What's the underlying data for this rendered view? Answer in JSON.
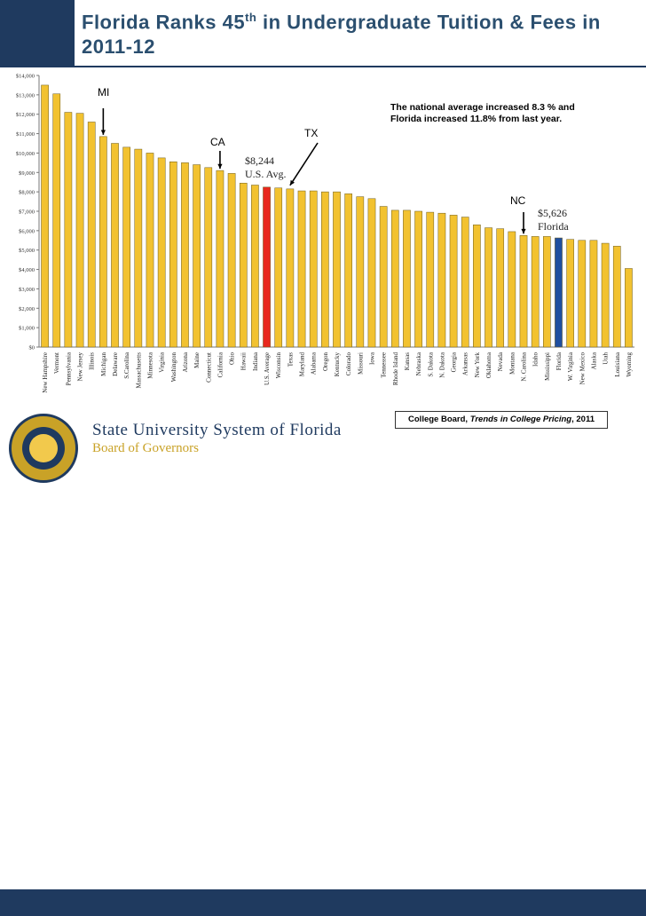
{
  "title": {
    "pre": "Florida Ranks 45",
    "sup": "th",
    "post": " in Undergraduate Tuition & Fees in 2011-12"
  },
  "note": "The national average increased 8.3 % and Florida increased 11.8% from last year.",
  "source": {
    "pre": "College Board, ",
    "italic": "Trends in College Pricing",
    "post": ", 2011"
  },
  "annotations": {
    "mi": "MI",
    "ca": "CA",
    "tx": "TX",
    "nc": "NC",
    "us_value": "$8,244",
    "us_label": "U.S. Avg.",
    "fl_value": "$5,626",
    "fl_label": "Florida"
  },
  "brand": {
    "line1": "State University System of Florida",
    "line2": "Board of Governors",
    "url": "www.flbog.edu"
  },
  "colors": {
    "bar": "#f2c230",
    "us_avg": "#e8281e",
    "florida": "#1f4fa0",
    "outline": "#6b5a1e"
  },
  "chart_data": {
    "type": "bar",
    "categories": [
      "New Hampshire",
      "Vermont",
      "Pennsylvania",
      "New Jersey",
      "Illinois",
      "Michigan",
      "Delaware",
      "S.Carolina",
      "Massachusetts",
      "Minnesota",
      "Virginia",
      "Washington",
      "Arizona",
      "Maine",
      "Connecticut",
      "California",
      "Ohio",
      "Hawaii",
      "Indiana",
      "U.S. Average",
      "Wisconsin",
      "Texas",
      "Maryland",
      "Alabama",
      "Oregon",
      "Kentucky",
      "Colorado",
      "Missouri",
      "Iowa",
      "Tennessee",
      "Rhode Island",
      "Kansas",
      "Nebraska",
      "S. Dakota",
      "N. Dakota",
      "Georgia",
      "Arkansas",
      "New York",
      "Oklahoma",
      "Nevada",
      "Montana",
      "N. Carolina",
      "Idaho",
      "Mississippi",
      "Florida",
      "W. Virginia",
      "New Mexico",
      "Alaska",
      "Utah",
      "Louisiana",
      "Wyoming"
    ],
    "values": [
      13500,
      13050,
      12100,
      12050,
      11600,
      10850,
      10500,
      10300,
      10200,
      10000,
      9750,
      9550,
      9500,
      9400,
      9250,
      9100,
      8950,
      8450,
      8350,
      8244,
      8200,
      8150,
      8050,
      8050,
      8000,
      8000,
      7900,
      7750,
      7650,
      7250,
      7050,
      7050,
      7000,
      6950,
      6900,
      6800,
      6700,
      6300,
      6150,
      6100,
      5950,
      5750,
      5700,
      5700,
      5626,
      5550,
      5500,
      5500,
      5350,
      5200,
      4050
    ],
    "highlight": {
      "U.S. Average": "us_avg",
      "Florida": "florida"
    },
    "yticks": [
      "$0",
      "$1,000",
      "$2,000",
      "$3,000",
      "$4,000",
      "$5,000",
      "$6,000",
      "$7,000",
      "$8,000",
      "$9,000",
      "$10,000",
      "$11,000",
      "$12,000",
      "$13,000",
      "$14,000"
    ],
    "ylim": [
      0,
      14000
    ],
    "grid": false
  }
}
